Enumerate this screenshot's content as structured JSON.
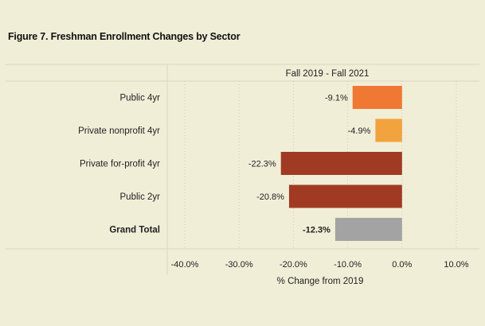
{
  "title": "Figure 7. Freshman Enrollment Changes by Sector",
  "chart_data": {
    "type": "bar",
    "orientation": "horizontal",
    "panel_title": "Fall 2019 - Fall 2021",
    "categories": [
      "Public 4yr",
      "Private nonprofit 4yr",
      "Private for-profit 4yr",
      "Public 2yr",
      "Grand Total"
    ],
    "values": [
      -9.1,
      -4.9,
      -22.3,
      -20.8,
      -12.3
    ],
    "value_labels": [
      "-9.1%",
      "-4.9%",
      "-22.3%",
      "-20.8%",
      "-12.3%"
    ],
    "bold_categories": [
      "Grand Total"
    ],
    "colors": [
      "#ef7832",
      "#f2a33e",
      "#a03a22",
      "#a03a22",
      "#a3a3a3"
    ],
    "xlabel": "% Change from 2019",
    "ylabel": "",
    "xlim": [
      -40,
      10
    ],
    "xticks": [
      -40,
      -30,
      -20,
      -10,
      0,
      10
    ],
    "xtick_labels": [
      "-40.0%",
      "-30.0%",
      "-20.0%",
      "-10.0%",
      "0.0%",
      "10.0%"
    ],
    "grid": "dotted vertical",
    "legend": "none"
  }
}
